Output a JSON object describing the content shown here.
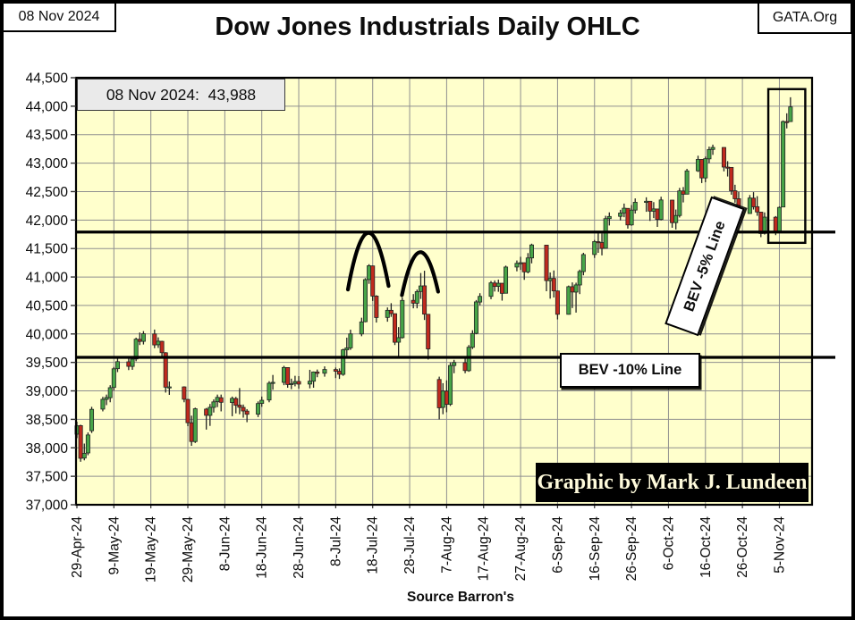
{
  "header": {
    "date_box": "08 Nov 2024",
    "site_box": "GATA.Org",
    "title": "Dow Jones Industrials Daily OHLC"
  },
  "annotations": {
    "latest_label": "08 Nov 2024:  43,988",
    "bev5_label": "BEV -5% Line",
    "bev10_label": "BEV -10% Line",
    "credit": "Graphic by Mark J. Lundeen",
    "source": "Source Barron's"
  },
  "chart_data": {
    "type": "ohlc-candlestick",
    "title": "Dow Jones Industrials Daily OHLC",
    "last_close_label": "08 Nov 2024:  43,988",
    "last_close": 43988,
    "ylim": [
      37000,
      44500
    ],
    "y_tick_step": 500,
    "grid": true,
    "plot_bg": "#FFFFCC",
    "colors": {
      "up": "#47A447",
      "down": "#C02A1E",
      "wick": "#222222",
      "grid": "#8f8f8f",
      "axis": "#000000",
      "reference_line": "#000000"
    },
    "y_ticks": [
      "44,500",
      "44,000",
      "43,500",
      "43,000",
      "42,500",
      "42,000",
      "41,500",
      "41,000",
      "40,500",
      "40,000",
      "39,500",
      "39,000",
      "38,500",
      "38,000",
      "37,500",
      "37,000"
    ],
    "x_ticks": [
      [
        "29-Apr-24",
        0
      ],
      [
        "9-May-24",
        10
      ],
      [
        "19-May-24",
        20
      ],
      [
        "29-May-24",
        30
      ],
      [
        "8-Jun-24",
        40
      ],
      [
        "18-Jun-24",
        50
      ],
      [
        "28-Jun-24",
        60
      ],
      [
        "8-Jul-24",
        70
      ],
      [
        "18-Jul-24",
        80
      ],
      [
        "28-Jul-24",
        90
      ],
      [
        "7-Aug-24",
        100
      ],
      [
        "17-Aug-24",
        110
      ],
      [
        "27-Aug-24",
        120
      ],
      [
        "6-Sep-24",
        130
      ],
      [
        "16-Sep-24",
        140
      ],
      [
        "26-Sep-24",
        150
      ],
      [
        "6-Oct-24",
        160
      ],
      [
        "16-Oct-24",
        170
      ],
      [
        "26-Oct-24",
        180
      ],
      [
        "5-Nov-24",
        190
      ]
    ],
    "reference_lines": [
      {
        "label": "BEV -5% Line",
        "value": 41789
      },
      {
        "label": "BEV -10% Line",
        "value": 39589
      }
    ],
    "highlight_box": {
      "from_day": 187,
      "to_day": 197,
      "top_value": 44300,
      "bottom_value": 41600
    },
    "peak_arcs": [
      {
        "center_day": 78.8,
        "half_span_days": 5.5,
        "apex_value": 41760,
        "end_value": 40780
      },
      {
        "center_day": 92.8,
        "half_span_days": 4.9,
        "apex_value": 41420,
        "end_value": 40680
      }
    ],
    "candles_format": [
      "date",
      "day_offset",
      "open",
      "high",
      "low",
      "close"
    ],
    "candles": [
      [
        "29-Apr-24",
        0,
        38240,
        38460,
        38170,
        38386
      ],
      [
        "30-Apr-24",
        1,
        38390,
        38406,
        37755,
        37816
      ],
      [
        "1-May-24",
        2,
        37820,
        38075,
        37780,
        37903
      ],
      [
        "2-May-24",
        3,
        37910,
        38270,
        37870,
        38226
      ],
      [
        "3-May-24",
        4,
        38300,
        38720,
        38260,
        38676
      ],
      [
        "6-May-24",
        7,
        38680,
        38895,
        38640,
        38852
      ],
      [
        "7-May-24",
        8,
        38850,
        38935,
        38750,
        38884
      ],
      [
        "8-May-24",
        9,
        38880,
        39100,
        38800,
        39056
      ],
      [
        "9-May-24",
        10,
        39060,
        39420,
        39005,
        39388
      ],
      [
        "10-May-24",
        11,
        39390,
        39585,
        39330,
        39513
      ],
      [
        "13-May-24",
        14,
        39510,
        39570,
        39365,
        39431
      ],
      [
        "14-May-24",
        15,
        39430,
        39610,
        39370,
        39558
      ],
      [
        "15-May-24",
        16,
        39560,
        39935,
        39520,
        39908
      ],
      [
        "16-May-24",
        17,
        39905,
        40025,
        39805,
        39869
      ],
      [
        "17-May-24",
        18,
        39870,
        40050,
        39815,
        40004
      ],
      [
        "20-May-24",
        21,
        40000,
        40077,
        39750,
        39807
      ],
      [
        "21-May-24",
        22,
        39810,
        39940,
        39755,
        39873
      ],
      [
        "22-May-24",
        23,
        39870,
        39880,
        39600,
        39671
      ],
      [
        "23-May-24",
        24,
        39670,
        39680,
        38970,
        39065
      ],
      [
        "24-May-24",
        25,
        39065,
        39165,
        38930,
        39070
      ],
      [
        "28-May-24",
        29,
        39070,
        39080,
        38800,
        38853
      ],
      [
        "29-May-24",
        30,
        38850,
        38860,
        38380,
        38441
      ],
      [
        "30-May-24",
        31,
        38440,
        38565,
        38035,
        38111
      ],
      [
        "31-May-24",
        32,
        38110,
        38705,
        38085,
        38686
      ],
      [
        "3-Jun-24",
        35,
        38680,
        38700,
        38320,
        38571
      ],
      [
        "4-Jun-24",
        36,
        38570,
        38770,
        38385,
        38711
      ],
      [
        "5-Jun-24",
        37,
        38710,
        38850,
        38620,
        38807
      ],
      [
        "6-Jun-24",
        38,
        38810,
        38935,
        38715,
        38886
      ],
      [
        "7-Jun-24",
        39,
        38880,
        38935,
        38640,
        38799
      ],
      [
        "10-Jun-24",
        42,
        38795,
        38900,
        38555,
        38868
      ],
      [
        "11-Jun-24",
        43,
        38865,
        38895,
        38605,
        38747
      ],
      [
        "12-Jun-24",
        44,
        38750,
        39050,
        38590,
        38712
      ],
      [
        "13-Jun-24",
        45,
        38710,
        38760,
        38530,
        38647
      ],
      [
        "14-Jun-24",
        46,
        38645,
        38680,
        38450,
        38589
      ],
      [
        "17-Jun-24",
        49,
        38590,
        38815,
        38540,
        38778
      ],
      [
        "18-Jun-24",
        50,
        38780,
        38900,
        38720,
        38835
      ],
      [
        "20-Jun-24",
        52,
        38840,
        39170,
        38800,
        39135
      ],
      [
        "21-Jun-24",
        53,
        39135,
        39280,
        39020,
        39150
      ],
      [
        "24-Jun-24",
        56,
        39150,
        39440,
        39100,
        39411
      ],
      [
        "25-Jun-24",
        57,
        39410,
        39415,
        39055,
        39112
      ],
      [
        "26-Jun-24",
        58,
        39110,
        39215,
        39030,
        39128
      ],
      [
        "27-Jun-24",
        59,
        39130,
        39265,
        39080,
        39164
      ],
      [
        "28-Jun-24",
        60,
        39165,
        39260,
        39040,
        39119
      ],
      [
        "1-Jul-24",
        63,
        39120,
        39370,
        39045,
        39170
      ],
      [
        "2-Jul-24",
        64,
        39170,
        39340,
        39055,
        39332
      ],
      [
        "3-Jul-24",
        65,
        39330,
        39375,
        39240,
        39308
      ],
      [
        "5-Jul-24",
        67,
        39310,
        39430,
        39250,
        39376
      ],
      [
        "8-Jul-24",
        70,
        39375,
        39410,
        39225,
        39345
      ],
      [
        "9-Jul-24",
        71,
        39345,
        39395,
        39210,
        39292
      ],
      [
        "10-Jul-24",
        72,
        39290,
        39740,
        39265,
        39721
      ],
      [
        "11-Jul-24",
        73,
        39720,
        39935,
        39580,
        39754
      ],
      [
        "12-Jul-24",
        74,
        39755,
        40075,
        39720,
        40001
      ],
      [
        "15-Jul-24",
        77,
        40000,
        40285,
        39960,
        40211
      ],
      [
        "16-Jul-24",
        78,
        40215,
        40980,
        40205,
        40954
      ],
      [
        "17-Jul-24",
        79,
        40955,
        41225,
        40880,
        41198
      ],
      [
        "18-Jul-24",
        80,
        41195,
        41200,
        40580,
        40665
      ],
      [
        "19-Jul-24",
        81,
        40665,
        40680,
        40200,
        40288
      ],
      [
        "22-Jul-24",
        84,
        40290,
        40465,
        40215,
        40415
      ],
      [
        "23-Jul-24",
        85,
        40415,
        40540,
        40300,
        40358
      ],
      [
        "24-Jul-24",
        86,
        40355,
        40360,
        39805,
        39854
      ],
      [
        "25-Jul-24",
        87,
        39855,
        40120,
        39590,
        39935
      ],
      [
        "26-Jul-24",
        88,
        39935,
        40640,
        39920,
        40589
      ],
      [
        "29-Jul-24",
        91,
        40590,
        40700,
        40450,
        40540
      ],
      [
        "30-Jul-24",
        92,
        40540,
        40780,
        40450,
        40743
      ],
      [
        "31-Jul-24",
        93,
        40745,
        41070,
        40615,
        40843
      ],
      [
        "1-Aug-24",
        94,
        40845,
        41110,
        40245,
        40348
      ],
      [
        "2-Aug-24",
        95,
        40345,
        40350,
        39550,
        39737
      ],
      [
        "5-Aug-24",
        98,
        39200,
        39250,
        38499,
        38703
      ],
      [
        "6-Aug-24",
        99,
        38710,
        39135,
        38590,
        38997
      ],
      [
        "7-Aug-24",
        100,
        38995,
        39185,
        38625,
        38763
      ],
      [
        "8-Aug-24",
        101,
        38765,
        39500,
        38735,
        39446
      ],
      [
        "9-Aug-24",
        102,
        39445,
        39545,
        39310,
        39498
      ],
      [
        "12-Aug-24",
        105,
        39495,
        39575,
        39310,
        39357
      ],
      [
        "13-Aug-24",
        106,
        39355,
        39805,
        39335,
        39766
      ],
      [
        "14-Aug-24",
        107,
        39765,
        40065,
        39735,
        40008
      ],
      [
        "15-Aug-24",
        108,
        40010,
        40595,
        39995,
        40563
      ],
      [
        "16-Aug-24",
        109,
        40560,
        40715,
        40505,
        40660
      ],
      [
        "19-Aug-24",
        112,
        40660,
        40930,
        40610,
        40897
      ],
      [
        "20-Aug-24",
        113,
        40895,
        40940,
        40745,
        40834
      ],
      [
        "21-Aug-24",
        114,
        40835,
        40955,
        40740,
        40890
      ],
      [
        "22-Aug-24",
        115,
        40890,
        40895,
        40585,
        40713
      ],
      [
        "23-Aug-24",
        116,
        40715,
        41200,
        40710,
        41175
      ],
      [
        "26-Aug-24",
        119,
        41175,
        41290,
        41100,
        41240
      ],
      [
        "27-Aug-24",
        120,
        41240,
        41355,
        41125,
        41251
      ],
      [
        "28-Aug-24",
        121,
        41250,
        41255,
        40950,
        41091
      ],
      [
        "29-Aug-24",
        122,
        41090,
        41420,
        41065,
        41335
      ],
      [
        "30-Aug-24",
        123,
        41335,
        41585,
        41240,
        41563
      ],
      [
        "3-Sep-24",
        127,
        41560,
        41565,
        40750,
        40937
      ],
      [
        "4-Sep-24",
        128,
        40935,
        41080,
        40620,
        40975
      ],
      [
        "5-Sep-24",
        129,
        40975,
        41115,
        40640,
        40756
      ],
      [
        "6-Sep-24",
        130,
        40755,
        40760,
        40255,
        40345
      ],
      [
        "9-Sep-24",
        133,
        40345,
        40850,
        40340,
        40830
      ],
      [
        "10-Sep-24",
        134,
        40830,
        40905,
        40455,
        40737
      ],
      [
        "11-Sep-24",
        135,
        40735,
        40900,
        40375,
        40861
      ],
      [
        "12-Sep-24",
        136,
        40860,
        41130,
        40700,
        41097
      ],
      [
        "13-Sep-24",
        137,
        41095,
        41425,
        41030,
        41394
      ],
      [
        "16-Sep-24",
        140,
        41395,
        41650,
        41335,
        41622
      ],
      [
        "17-Sep-24",
        141,
        41620,
        41800,
        41425,
        41606
      ],
      [
        "18-Sep-24",
        142,
        41605,
        41765,
        41380,
        41503
      ],
      [
        "19-Sep-24",
        143,
        41505,
        42075,
        41500,
        42025
      ],
      [
        "20-Sep-24",
        144,
        42025,
        42135,
        41905,
        42063
      ],
      [
        "23-Sep-24",
        147,
        42065,
        42180,
        41995,
        42124
      ],
      [
        "24-Sep-24",
        148,
        42125,
        42290,
        42050,
        42208
      ],
      [
        "25-Sep-24",
        149,
        42205,
        42210,
        41850,
        41915
      ],
      [
        "26-Sep-24",
        150,
        41915,
        42265,
        41900,
        42175
      ],
      [
        "27-Sep-24",
        151,
        42175,
        42380,
        42115,
        42313
      ],
      [
        "30-Sep-24",
        154,
        42310,
        42400,
        42145,
        42330
      ],
      [
        "1-Oct-24",
        155,
        42330,
        42335,
        41985,
        42157
      ],
      [
        "2-Oct-24",
        156,
        42155,
        42315,
        42035,
        42196
      ],
      [
        "3-Oct-24",
        157,
        42195,
        42200,
        41880,
        42011
      ],
      [
        "4-Oct-24",
        158,
        42010,
        42410,
        41995,
        42353
      ],
      [
        "7-Oct-24",
        161,
        42350,
        42355,
        41865,
        41954
      ],
      [
        "8-Oct-24",
        162,
        41955,
        42185,
        41835,
        42080
      ],
      [
        "9-Oct-24",
        163,
        42080,
        42565,
        42045,
        42512
      ],
      [
        "10-Oct-24",
        164,
        42510,
        42580,
        42310,
        42454
      ],
      [
        "11-Oct-24",
        165,
        42455,
        42900,
        42455,
        42864
      ],
      [
        "14-Oct-24",
        168,
        42865,
        43130,
        42845,
        43065
      ],
      [
        "15-Oct-24",
        169,
        43065,
        43070,
        42650,
        42740
      ],
      [
        "16-Oct-24",
        170,
        42740,
        43115,
        42665,
        43078
      ],
      [
        "17-Oct-24",
        171,
        43075,
        43290,
        43000,
        43239
      ],
      [
        "18-Oct-24",
        172,
        43240,
        43325,
        43145,
        43276
      ],
      [
        "21-Oct-24",
        175,
        43275,
        43280,
        42855,
        42931
      ],
      [
        "22-Oct-24",
        176,
        42930,
        43035,
        42765,
        42925
      ],
      [
        "23-Oct-24",
        177,
        42925,
        42930,
        42445,
        42515
      ],
      [
        "24-Oct-24",
        178,
        42515,
        42620,
        42305,
        42374
      ],
      [
        "25-Oct-24",
        179,
        42375,
        42495,
        42055,
        42114
      ],
      [
        "28-Oct-24",
        182,
        42115,
        42440,
        42110,
        42387
      ],
      [
        "29-Oct-24",
        183,
        42385,
        42490,
        42185,
        42233
      ],
      [
        "30-Oct-24",
        184,
        42235,
        42420,
        42075,
        42142
      ],
      [
        "31-Oct-24",
        185,
        42140,
        42145,
        41700,
        41763
      ],
      [
        "1-Nov-24",
        186,
        41765,
        42135,
        41745,
        42052
      ],
      [
        "4-Nov-24",
        189,
        42050,
        42070,
        41735,
        41795
      ],
      [
        "5-Nov-24",
        190,
        41795,
        42240,
        41790,
        42222
      ],
      [
        "6-Nov-24",
        191,
        42230,
        43750,
        42225,
        43730
      ],
      [
        "7-Nov-24",
        192,
        43730,
        43875,
        43610,
        43729
      ],
      [
        "8-Nov-24",
        193,
        43730,
        44157,
        43725,
        43988
      ]
    ]
  }
}
